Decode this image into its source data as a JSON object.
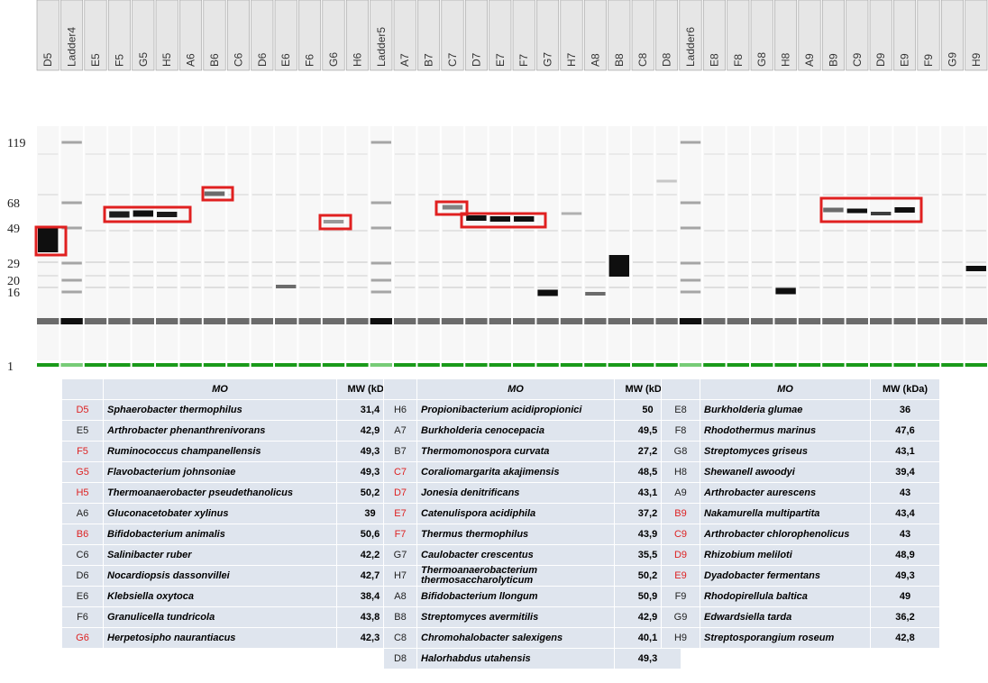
{
  "lanes": [
    "D5",
    "Ladder4",
    "E5",
    "F5",
    "G5",
    "H5",
    "A6",
    "B6",
    "C6",
    "D6",
    "E6",
    "F6",
    "G6",
    "H6",
    "Ladder5",
    "A7",
    "B7",
    "C7",
    "D7",
    "E7",
    "F7",
    "G7",
    "H7",
    "A8",
    "B8",
    "C8",
    "D8",
    "Ladder6",
    "E8",
    "F8",
    "G8",
    "H8",
    "A9",
    "B9",
    "C9",
    "D9",
    "E9",
    "F9",
    "G9",
    "H9"
  ],
  "markers": [
    "119",
    "68",
    "49",
    "29",
    "20",
    "16",
    "1"
  ],
  "tables": [
    {
      "columns": [
        "MO",
        "MW (kDa)"
      ],
      "rows": [
        {
          "id": "D5",
          "organism": "Sphaerobacter thermophilus",
          "mw": "31,4",
          "id_color": "#d22"
        },
        {
          "id": "E5",
          "organism": "Arthrobacter phenanthrenivorans",
          "mw": "42,9",
          "id_color": "#222"
        },
        {
          "id": "F5",
          "organism": "Ruminococcus champanellensis",
          "mw": "49,3",
          "id_color": "#d22"
        },
        {
          "id": "G5",
          "organism": "Flavobacterium johnsoniae",
          "mw": "49,3",
          "id_color": "#d22"
        },
        {
          "id": "H5",
          "organism": "Thermoanaerobacter pseudethanolicus",
          "mw": "50,2",
          "id_color": "#d22"
        },
        {
          "id": "A6",
          "organism": "Gluconacetobater xylinus",
          "mw": "39",
          "id_color": "#222"
        },
        {
          "id": "B6",
          "organism": "Bifidobacterium animalis",
          "mw": "50,6",
          "id_color": "#d22"
        },
        {
          "id": "C6",
          "organism": "Salinibacter ruber",
          "mw": "42,2",
          "id_color": "#222"
        },
        {
          "id": "D6",
          "organism": "Nocardiopsis dassonvillei",
          "mw": "42,7",
          "id_color": "#222"
        },
        {
          "id": "E6",
          "organism": "Klebsiella oxytoca",
          "mw": "38,4",
          "id_color": "#222"
        },
        {
          "id": "F6",
          "organism": "Granulicella tundricola",
          "mw": "43,8",
          "id_color": "#222"
        },
        {
          "id": "G6",
          "organism": "Herpetosipho naurantiacus",
          "mw": "42,3",
          "id_color": "#d22"
        }
      ]
    },
    {
      "columns": [
        "MO",
        "MW (kDa)"
      ],
      "rows": [
        {
          "id": "H6",
          "organism": "Propionibacterium acidipropionici",
          "mw": "50",
          "id_color": "#222"
        },
        {
          "id": "A7",
          "organism": "Burkholderia cenocepacia",
          "mw": "49,5",
          "id_color": "#222"
        },
        {
          "id": "B7",
          "organism": "Thermomonospora curvata",
          "mw": "27,2",
          "id_color": "#222"
        },
        {
          "id": "C7",
          "organism": "Coraliomargarita akajimensis",
          "mw": "48,5",
          "id_color": "#d22"
        },
        {
          "id": "D7",
          "organism": "Jonesia denitrificans",
          "mw": "43,1",
          "id_color": "#d22"
        },
        {
          "id": "E7",
          "organism": "Catenulispora acidiphila",
          "mw": "37,2",
          "id_color": "#d22"
        },
        {
          "id": "F7",
          "organism": "Thermus thermophilus",
          "mw": "43,9",
          "id_color": "#d22"
        },
        {
          "id": "G7",
          "organism": "Caulobacter crescentus",
          "mw": "35,5",
          "id_color": "#222"
        },
        {
          "id": "H7",
          "organism": "Thermoanaerobacterium thermosaccharolyticum",
          "mw": "50,2",
          "id_color": "#222"
        },
        {
          "id": "A8",
          "organism": "Bifidobacterium llongum",
          "mw": "50,9",
          "id_color": "#222"
        },
        {
          "id": "B8",
          "organism": "Streptomyces avermitilis",
          "mw": "42,9",
          "id_color": "#222"
        },
        {
          "id": "C8",
          "organism": "Chromohalobacter salexigens",
          "mw": "40,1",
          "id_color": "#222"
        },
        {
          "id": "D8",
          "organism": "Halorhabdus utahensis",
          "mw": "49,3",
          "id_color": "#222"
        }
      ]
    },
    {
      "columns": [
        "MO",
        "MW (kDa)"
      ],
      "rows": [
        {
          "id": "E8",
          "organism": "Burkholderia glumae",
          "mw": "36",
          "id_color": "#222"
        },
        {
          "id": "F8",
          "organism": "Rhodothermus marinus",
          "mw": "47,6",
          "id_color": "#222"
        },
        {
          "id": "G8",
          "organism": "Streptomyces griseus",
          "mw": "43,1",
          "id_color": "#222"
        },
        {
          "id": "H8",
          "organism": "Shewanell awoodyi",
          "mw": "39,4",
          "id_color": "#222"
        },
        {
          "id": "A9",
          "organism": "Arthrobacter aurescens",
          "mw": "43",
          "id_color": "#222"
        },
        {
          "id": "B9",
          "organism": "Nakamurella multipartita",
          "mw": "43,4",
          "id_color": "#d22"
        },
        {
          "id": "C9",
          "organism": "Arthrobacter chlorophenolicus",
          "mw": "43",
          "id_color": "#d22"
        },
        {
          "id": "D9",
          "organism": "Rhizobium meliloti",
          "mw": "48,9",
          "id_color": "#d22"
        },
        {
          "id": "E9",
          "organism": "Dyadobacter fermentans",
          "mw": "49,3",
          "id_color": "#d22"
        },
        {
          "id": "F9",
          "organism": "Rhodopirellula baltica",
          "mw": "49",
          "id_color": "#222"
        },
        {
          "id": "G9",
          "organism": "Edwardsiella tarda",
          "mw": "36,2",
          "id_color": "#222"
        },
        {
          "id": "H9",
          "organism": "Streptosporangium roseum",
          "mw": "42,8",
          "id_color": "#222"
        }
      ]
    }
  ]
}
